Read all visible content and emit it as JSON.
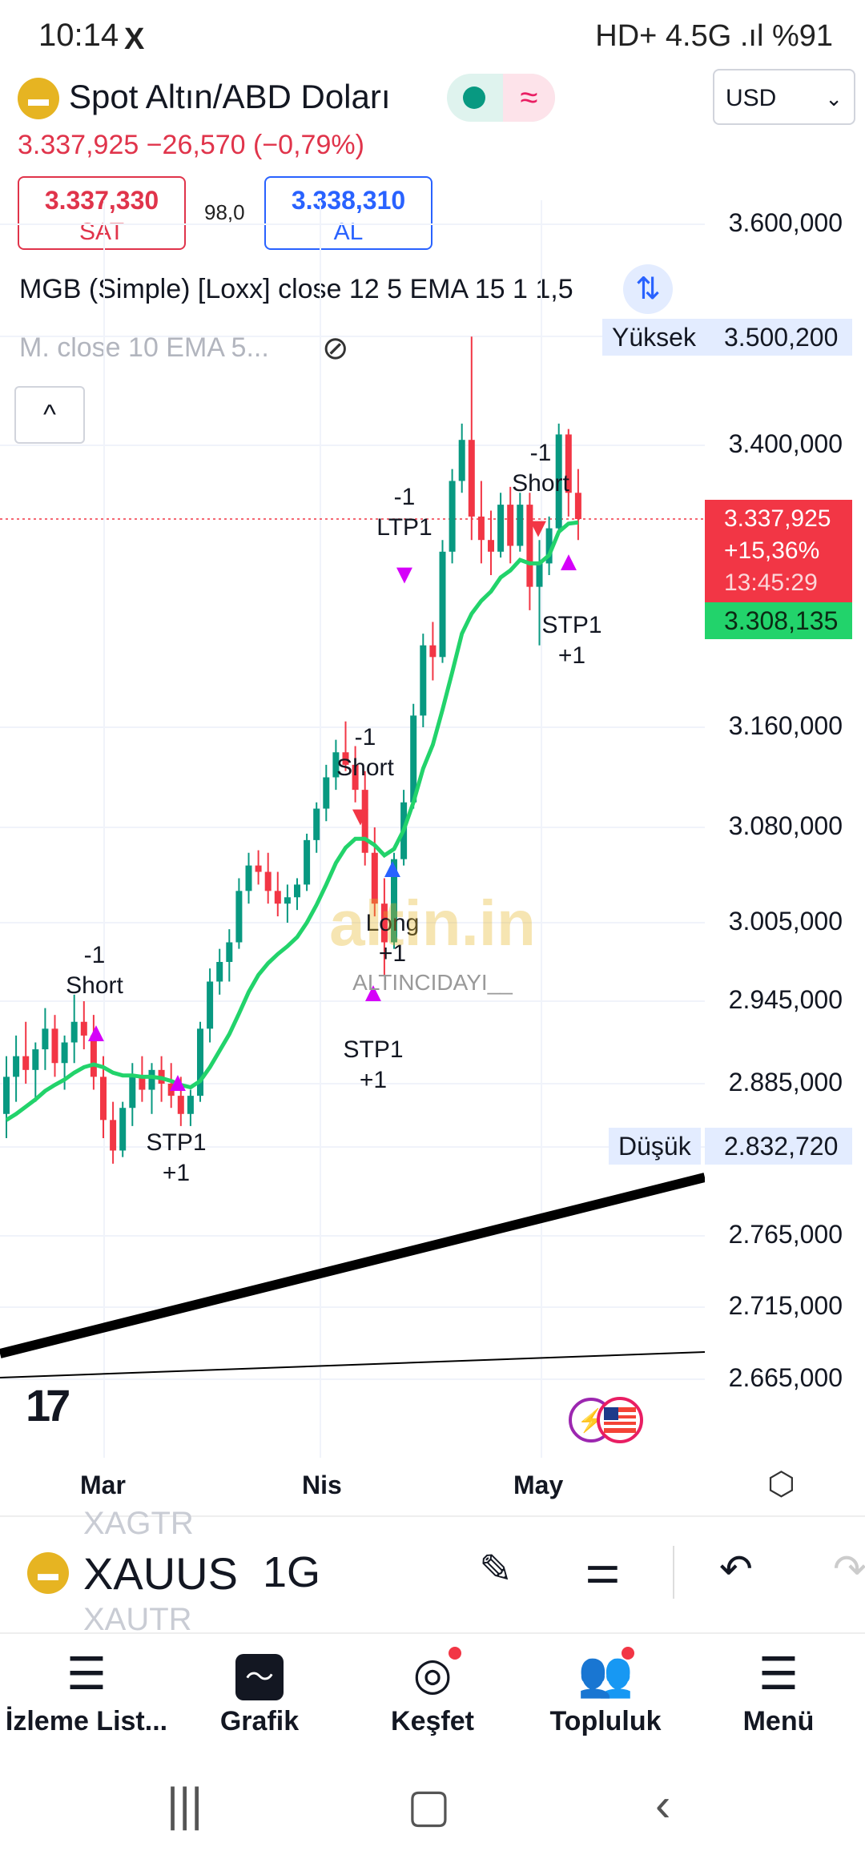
{
  "status": {
    "time": "10:14",
    "x_icon": "X",
    "right": "HD+ 4.5G .ıl %91"
  },
  "header": {
    "title": "Spot Altın/ABD Doları",
    "currency": "USD",
    "price_line": "3.337,925 −26,570 (−0,79%)",
    "sell_price": "3.337,330",
    "sell_label": "SAT",
    "spread": "98,0",
    "buy_price": "3.338,310",
    "buy_label": "AL",
    "indicator1": "MGB (Simple) [Loxx] close 12 5 EMA 15 1 1,5",
    "indicator2": "M. close 10 EMA 5..."
  },
  "price_axis": {
    "labels": [
      "3.600,000",
      "3.400,000",
      "3.160,000",
      "3.080,000",
      "3.005,000",
      "2.945,000",
      "2.885,000",
      "2.765,000",
      "2.715,000",
      "2.665,000"
    ],
    "high_label": "Yüksek",
    "high_value": "3.500,200",
    "low_label": "Düşük",
    "low_value": "2.832,720",
    "current_price": "3.337,925",
    "current_change": "+15,36%",
    "countdown": "13:45:29",
    "ema_value": "3.308,135"
  },
  "chart_data": {
    "type": "candlestick",
    "symbol": "XAUUSD",
    "interval": "1G",
    "x_labels": [
      "Mar",
      "Nis",
      "May"
    ],
    "annotations": [
      "-1 Short",
      "STP1 +1",
      "-1 Short",
      "Long +1",
      "STP1 +1",
      "-1 LTP1",
      "-1 Short",
      "STP1 +1"
    ],
    "watermark": "altin.in",
    "watermark_sub": "ALTINCIDAYI__",
    "candles": [
      [
        2860,
        2905,
        2840,
        2890
      ],
      [
        2890,
        2920,
        2870,
        2905
      ],
      [
        2905,
        2930,
        2885,
        2895
      ],
      [
        2895,
        2915,
        2870,
        2910
      ],
      [
        2910,
        2940,
        2895,
        2925
      ],
      [
        2925,
        2935,
        2890,
        2900
      ],
      [
        2900,
        2920,
        2880,
        2915
      ],
      [
        2915,
        2950,
        2900,
        2930
      ],
      [
        2930,
        2945,
        2910,
        2920
      ],
      [
        2920,
        2935,
        2880,
        2890
      ],
      [
        2890,
        2905,
        2840,
        2855
      ],
      [
        2855,
        2870,
        2820,
        2830
      ],
      [
        2830,
        2870,
        2825,
        2865
      ],
      [
        2865,
        2900,
        2850,
        2890
      ],
      [
        2890,
        2905,
        2870,
        2880
      ],
      [
        2880,
        2900,
        2860,
        2895
      ],
      [
        2895,
        2905,
        2870,
        2885
      ],
      [
        2885,
        2900,
        2865,
        2875
      ],
      [
        2875,
        2890,
        2850,
        2860
      ],
      [
        2860,
        2880,
        2850,
        2875
      ],
      [
        2875,
        2930,
        2870,
        2925
      ],
      [
        2925,
        2970,
        2915,
        2960
      ],
      [
        2960,
        2985,
        2950,
        2975
      ],
      [
        2975,
        3000,
        2960,
        2990
      ],
      [
        2990,
        3040,
        2985,
        3030
      ],
      [
        3030,
        3060,
        3020,
        3050
      ],
      [
        3050,
        3062,
        3035,
        3045
      ],
      [
        3045,
        3060,
        3020,
        3030
      ],
      [
        3030,
        3045,
        3010,
        3020
      ],
      [
        3020,
        3035,
        3005,
        3025
      ],
      [
        3025,
        3040,
        3015,
        3035
      ],
      [
        3035,
        3075,
        3030,
        3070
      ],
      [
        3070,
        3100,
        3060,
        3095
      ],
      [
        3095,
        3130,
        3085,
        3120
      ],
      [
        3120,
        3150,
        3110,
        3140
      ],
      [
        3140,
        3165,
        3125,
        3130
      ],
      [
        3130,
        3145,
        3100,
        3110
      ],
      [
        3110,
        3125,
        3050,
        3060
      ],
      [
        3060,
        3080,
        3010,
        3020
      ],
      [
        3020,
        3040,
        2965,
        2990
      ],
      [
        2990,
        3060,
        2985,
        3055
      ],
      [
        3055,
        3110,
        3050,
        3100
      ],
      [
        3100,
        3180,
        3095,
        3170
      ],
      [
        3170,
        3240,
        3160,
        3230
      ],
      [
        3230,
        3250,
        3200,
        3220
      ],
      [
        3220,
        3320,
        3215,
        3310
      ],
      [
        3310,
        3380,
        3300,
        3370
      ],
      [
        3370,
        3420,
        3360,
        3405
      ],
      [
        3405,
        3500,
        3320,
        3340
      ],
      [
        3340,
        3370,
        3300,
        3320
      ],
      [
        3320,
        3345,
        3290,
        3310
      ],
      [
        3310,
        3360,
        3305,
        3350
      ],
      [
        3350,
        3365,
        3300,
        3315
      ],
      [
        3315,
        3360,
        3310,
        3350
      ],
      [
        3350,
        3360,
        3260,
        3280
      ],
      [
        3280,
        3320,
        3230,
        3300
      ],
      [
        3300,
        3340,
        3290,
        3330
      ],
      [
        3330,
        3420,
        3325,
        3410
      ],
      [
        3410,
        3415,
        3340,
        3360
      ],
      [
        3360,
        3380,
        3320,
        3337.9
      ]
    ],
    "ema": [
      2855,
      2860,
      2866,
      2872,
      2879,
      2884,
      2888,
      2893,
      2897,
      2899,
      2897,
      2893,
      2891,
      2891,
      2890,
      2890,
      2889,
      2887,
      2884,
      2882,
      2887,
      2897,
      2909,
      2921,
      2936,
      2952,
      2965,
      2974,
      2981,
      2987,
      2994,
      3005,
      3019,
      3035,
      3052,
      3064,
      3071,
      3071,
      3066,
      3058,
      3063,
      3078,
      3100,
      3127,
      3146,
      3175,
      3207,
      3240,
      3257,
      3268,
      3276,
      3288,
      3294,
      3303,
      3300,
      3300,
      3307,
      3327,
      3334,
      3335
    ]
  },
  "bottom_toolbar": {
    "symbol": "XAUUS",
    "ghost_prev": "XAGTR",
    "ghost_next": "XAUTR",
    "interval": "1G"
  },
  "nav": {
    "items": [
      {
        "label": "İzleme List..."
      },
      {
        "label": "Grafik"
      },
      {
        "label": "Keşfet"
      },
      {
        "label": "Topluluk"
      },
      {
        "label": "Menü"
      }
    ]
  }
}
